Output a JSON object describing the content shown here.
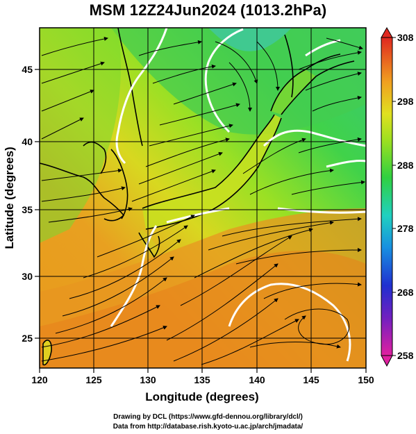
{
  "title": "MSM 12Z24Jun2024 (1013.2hPa)",
  "map": {
    "xlabel": "Longitude (degrees)",
    "ylabel": "Latitude  (degrees)",
    "xlim": [
      120,
      150
    ],
    "ylim": [
      22.5,
      48
    ],
    "xticks": [
      "120",
      "125",
      "130",
      "135",
      "140",
      "145",
      "150"
    ],
    "yticks": [
      "25",
      "30",
      "35",
      "40",
      "45"
    ],
    "field": "temperature (K) shaded, streamlines of surface wind, white contours"
  },
  "colorbar": {
    "labels": [
      "308",
      "298",
      "288",
      "278",
      "268",
      "258"
    ],
    "range": [
      258,
      308
    ],
    "colors": [
      "#e0207a",
      "#8020c0",
      "#2030d0",
      "#1890e0",
      "#20d0d0",
      "#30d040",
      "#90e020",
      "#e0e020",
      "#f0a020",
      "#e85020",
      "#e02020"
    ]
  },
  "credits": {
    "line1": "Drawing by DCL (https://www.gfd-dennou.org/library/dcl/)",
    "line2": "Data from http://database.rish.kyoto-u.ac.jp/arch/jmadata/"
  }
}
